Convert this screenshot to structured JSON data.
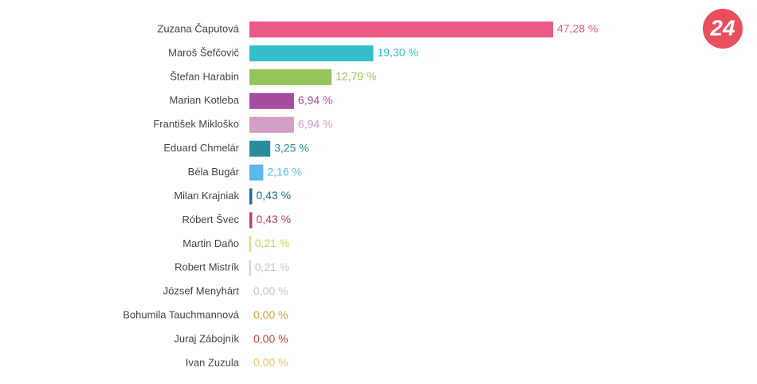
{
  "logo": "24",
  "chart_data": {
    "type": "bar",
    "orientation": "horizontal",
    "categories": [
      "Zuzana Čaputová",
      "Maroš Šefčovič",
      "Štefan Harabin",
      "Marian Kotleba",
      "František Mikloško",
      "Eduard Chmelár",
      "Béla Bugár",
      "Milan Krajniak",
      "Róbert Švec",
      "Martin Daňo",
      "Robert Mistrík",
      "József Menyhárt",
      "Bohumila Tauchmannová",
      "Juraj Zábojník",
      "Ivan Zuzula"
    ],
    "values": [
      47.28,
      19.3,
      12.79,
      6.94,
      6.94,
      3.25,
      2.16,
      0.43,
      0.43,
      0.21,
      0.21,
      0.0,
      0.0,
      0.0,
      0.0
    ],
    "value_labels": [
      "47,28 %",
      "19,30 %",
      "12,79 %",
      "6,94 %",
      "6,94 %",
      "3,25 %",
      "2,16 %",
      "0,43 %",
      "0,43 %",
      "0,21 %",
      "0,21 %",
      "0,00 %",
      "0,00 %",
      "0,00 %",
      "0,00 %"
    ],
    "colors": [
      "#ea5a85",
      "#35bec9",
      "#96c45a",
      "#a64d9f",
      "#d59ec6",
      "#2a8d9e",
      "#5ab9e8",
      "#1f6b8f",
      "#c23b5f",
      "#c9d65f",
      "#c8c8c8",
      "#c6c6c6",
      "#e6a23a",
      "#c9473a",
      "#f0c56a"
    ]
  }
}
